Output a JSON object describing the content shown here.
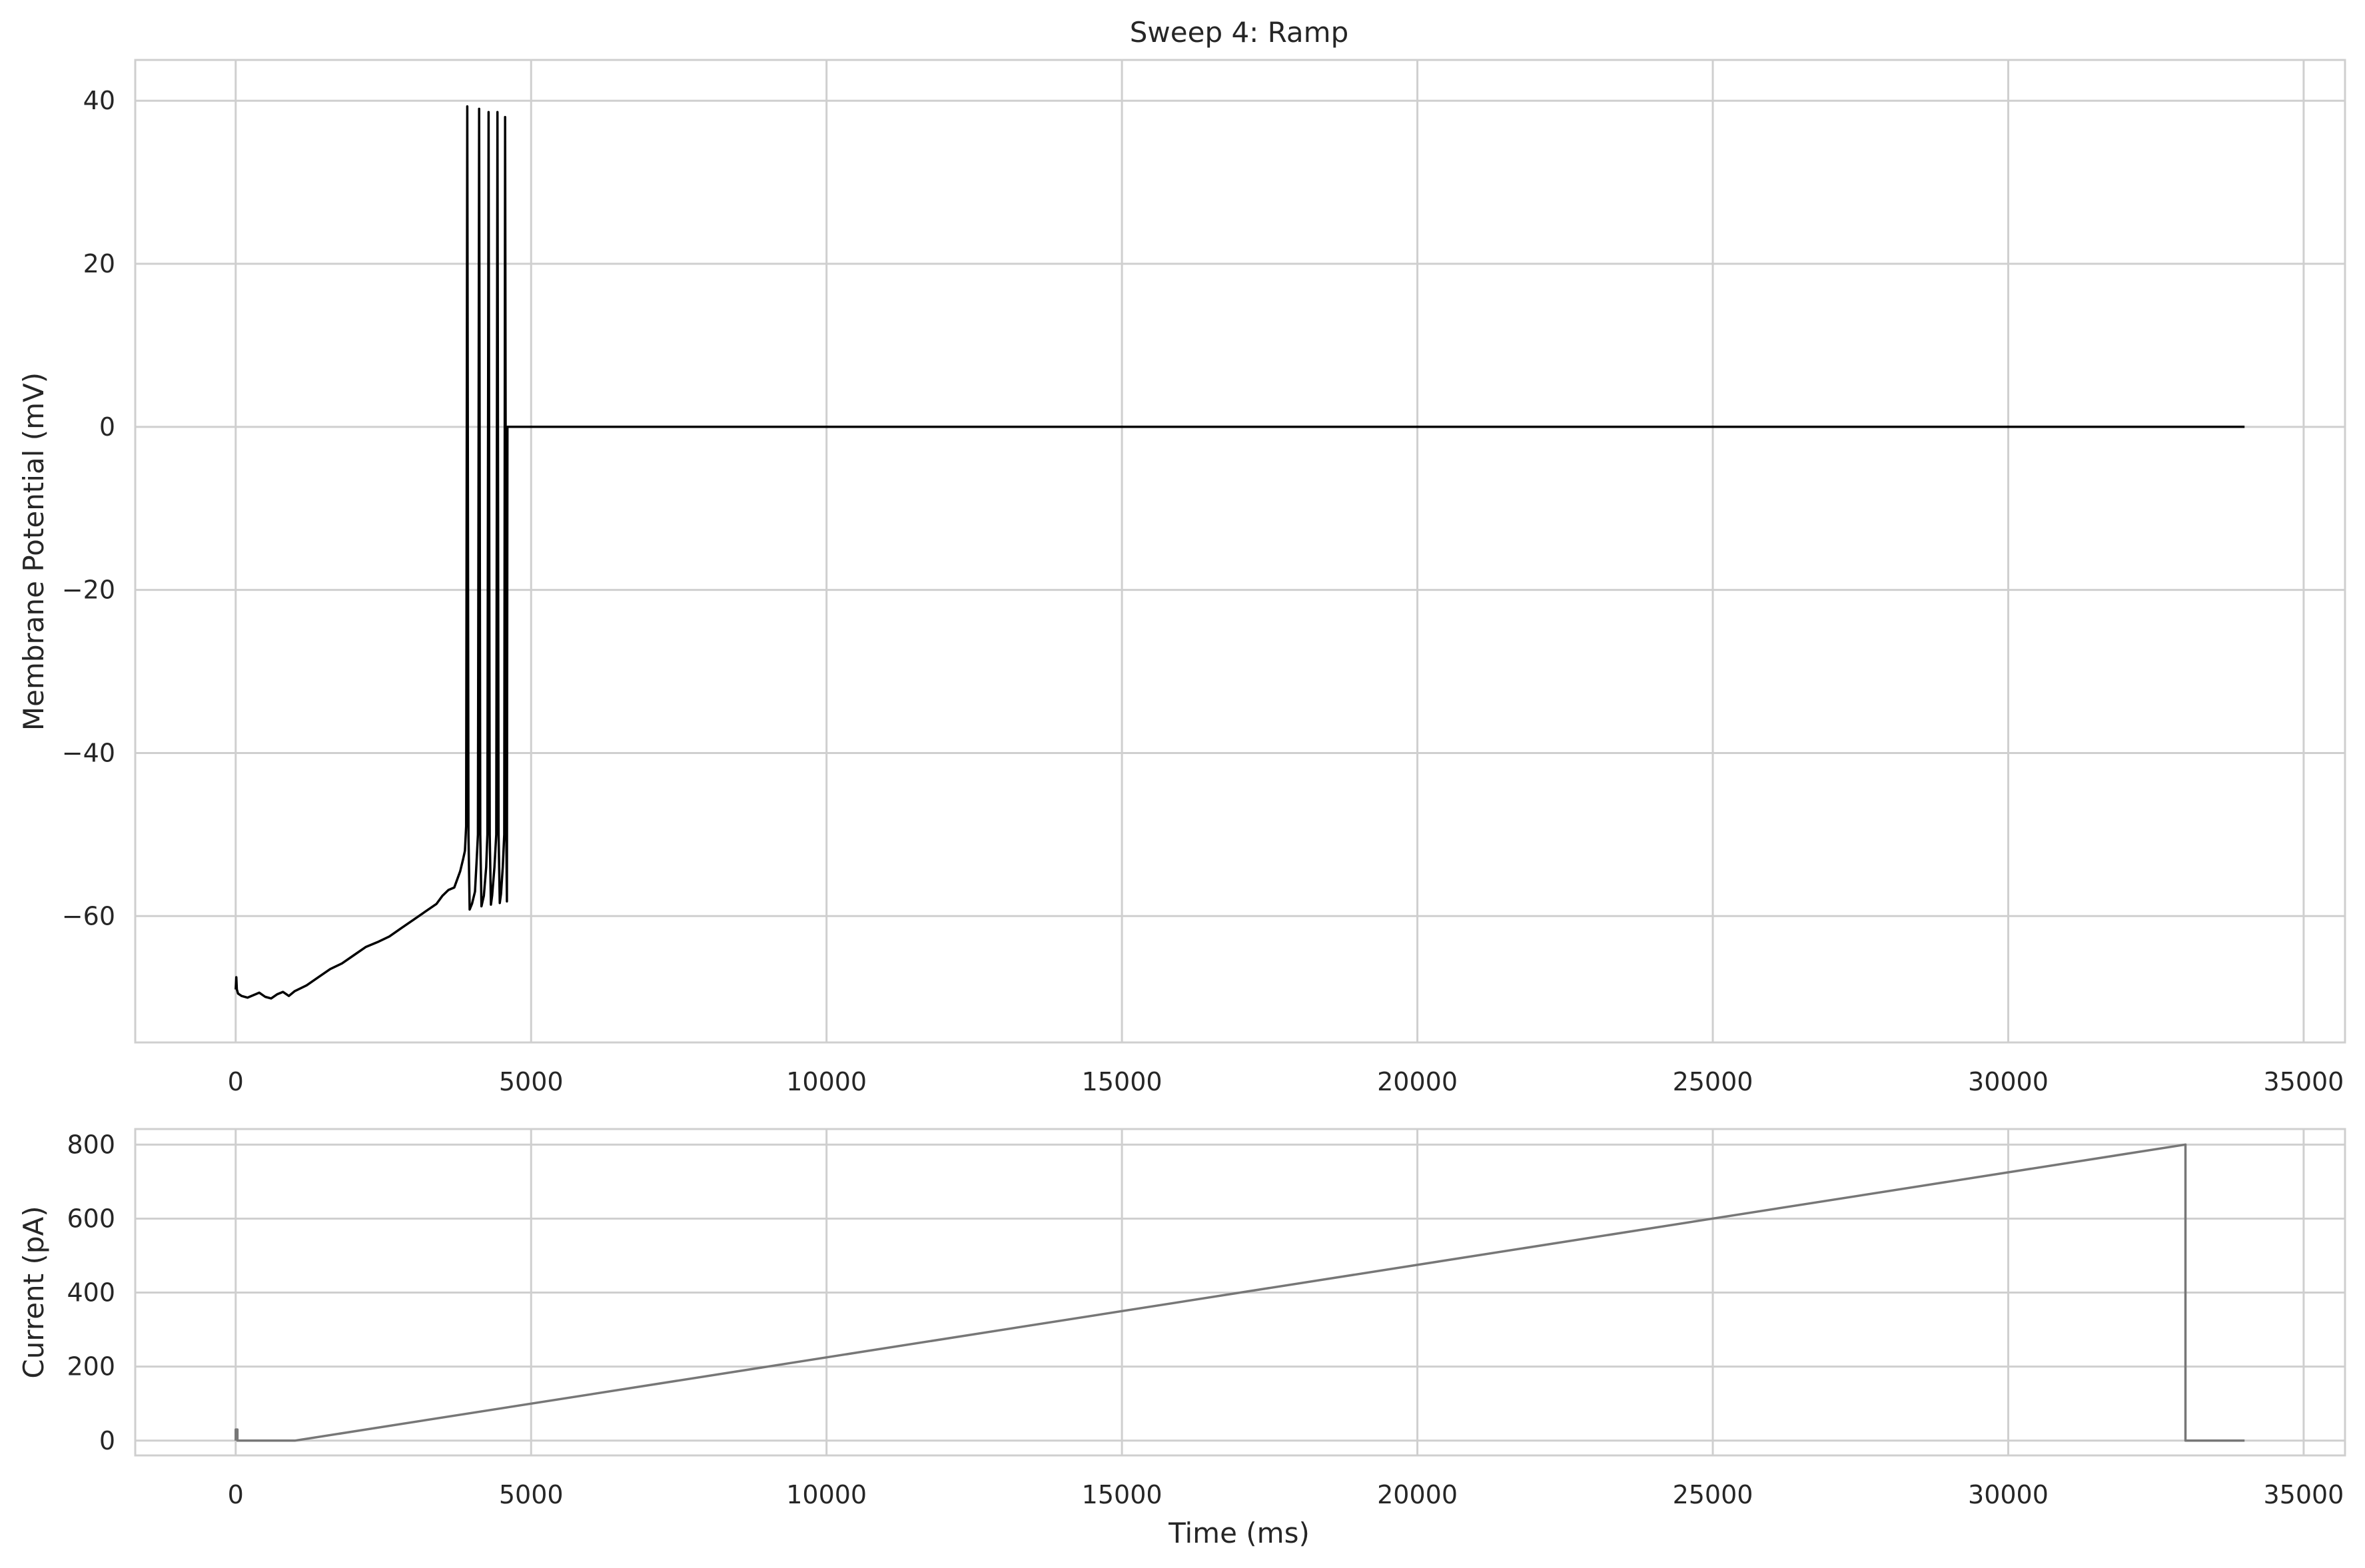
{
  "chart_data": [
    {
      "type": "line",
      "title": "Sweep 4: Ramp",
      "xlabel": "",
      "ylabel": "Membrane Potential (mV)",
      "xlim": [
        -1700,
        35700
      ],
      "ylim": [
        -75.5,
        45
      ],
      "xticks": [
        0,
        5000,
        10000,
        15000,
        20000,
        25000,
        30000,
        35000
      ],
      "yticks": [
        -60,
        -40,
        -20,
        0,
        20,
        40
      ],
      "ytick_labels": [
        "−60",
        "−40",
        "−20",
        "0",
        "20",
        "40"
      ],
      "grid": true,
      "series": [
        {
          "color": "#000000",
          "x": [
            0,
            10,
            20,
            40,
            100,
            200,
            300,
            400,
            500,
            600,
            700,
            800,
            900,
            1000,
            1200,
            1400,
            1600,
            1800,
            2000,
            2200,
            2400,
            2600,
            2800,
            3000,
            3200,
            3400,
            3500,
            3600,
            3700,
            3800,
            3850,
            3880,
            3900,
            3920,
            3940,
            3960,
            4000,
            4050,
            4080,
            4100,
            4120,
            4140,
            4160,
            4200,
            4240,
            4260,
            4280,
            4300,
            4320,
            4340,
            4380,
            4410,
            4430,
            4450,
            4470,
            4490,
            4520,
            4545,
            4560,
            4580,
            4590,
            4600,
            4620,
            34000
          ],
          "y": [
            -69,
            -67.5,
            -69,
            -69.5,
            -69.8,
            -70,
            -69.7,
            -69.4,
            -69.9,
            -70.1,
            -69.6,
            -69.3,
            -69.8,
            -69.2,
            -68.5,
            -67.5,
            -66.5,
            -65.8,
            -64.8,
            -63.8,
            -63.2,
            -62.5,
            -61.5,
            -60.5,
            -59.5,
            -58.5,
            -57.5,
            -56.8,
            -56.5,
            -54.5,
            -53,
            -52,
            -49,
            39.3,
            -50,
            -59.2,
            -58.5,
            -57,
            -53,
            -50,
            39,
            -50,
            -58.8,
            -57.5,
            -54,
            -50,
            38.6,
            -50,
            -58.6,
            -57.5,
            -54,
            -50,
            38.6,
            -50,
            -58.4,
            -57.3,
            -54,
            -50,
            38,
            -50,
            -58.2,
            0,
            0,
            0
          ]
        }
      ]
    },
    {
      "type": "line",
      "title": "",
      "xlabel": "Time (ms)",
      "ylabel": "Current (pA)",
      "xlim": [
        -1700,
        35700
      ],
      "ylim": [
        -40,
        842
      ],
      "xticks": [
        0,
        5000,
        10000,
        15000,
        20000,
        25000,
        30000,
        35000
      ],
      "yticks": [
        0,
        200,
        400,
        600,
        800
      ],
      "ytick_labels": [
        "0",
        "200",
        "400",
        "600",
        "800"
      ],
      "grid": true,
      "series": [
        {
          "color": "#777777",
          "x": [
            0,
            0,
            30,
            30,
            1000,
            33000,
            33000,
            34000
          ],
          "y": [
            0,
            30,
            30,
            0,
            0,
            800,
            0,
            0
          ]
        }
      ]
    }
  ],
  "x_tick_labels": [
    "0",
    "5000",
    "10000",
    "15000",
    "20000",
    "25000",
    "30000",
    "35000"
  ]
}
